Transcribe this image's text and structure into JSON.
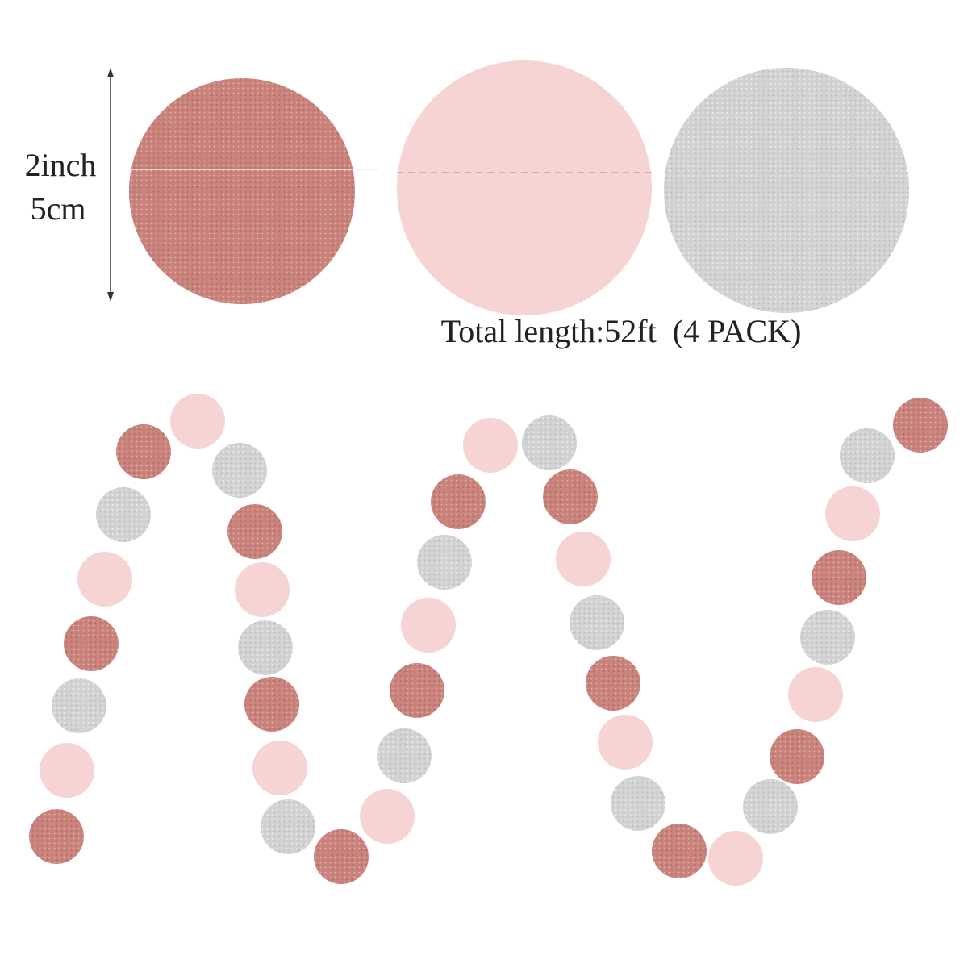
{
  "size_label": {
    "inch": "2inch",
    "cm": "5cm"
  },
  "caption": "Total length:52ft  (4 PACK)"
}
